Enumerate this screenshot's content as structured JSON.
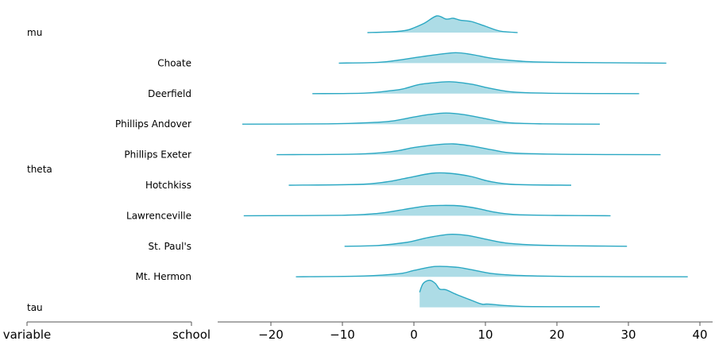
{
  "chart_data": {
    "type": "ridgeplot",
    "xlim": [
      -27,
      41.5
    ],
    "xticks": [
      -20,
      -10,
      0,
      10,
      20,
      30,
      40
    ],
    "xtick_labels": [
      "−20",
      "−10",
      "0",
      "10",
      "20",
      "30",
      "40"
    ],
    "left_axis_labels": [
      "variable",
      "school"
    ],
    "grid": false,
    "color": "#2BA8C3",
    "fill_color": "#ADDCE6",
    "rows": [
      {
        "variable": "mu",
        "school": "",
        "density": [
          [
            -6.5,
            0
          ],
          [
            -3,
            0.005
          ],
          [
            -1,
            0.015
          ],
          [
            0,
            0.03
          ],
          [
            1.5,
            0.06
          ],
          [
            3.2,
            0.105
          ],
          [
            4.5,
            0.085
          ],
          [
            5.5,
            0.09
          ],
          [
            6.5,
            0.078
          ],
          [
            8,
            0.07
          ],
          [
            10,
            0.04
          ],
          [
            12,
            0.01
          ],
          [
            14.5,
            0
          ]
        ]
      },
      {
        "variable": "",
        "school": "Choate",
        "density": [
          [
            -10.5,
            0
          ],
          [
            -5,
            0.005
          ],
          [
            -2,
            0.02
          ],
          [
            1,
            0.04
          ],
          [
            5.5,
            0.065
          ],
          [
            8,
            0.055
          ],
          [
            11,
            0.03
          ],
          [
            15,
            0.012
          ],
          [
            20,
            0.005
          ],
          [
            35.3,
            0
          ]
        ]
      },
      {
        "variable": "",
        "school": "Deerfield",
        "density": [
          [
            -14.2,
            0
          ],
          [
            -7,
            0.003
          ],
          [
            -3,
            0.02
          ],
          [
            -1.5,
            0.03
          ],
          [
            0.5,
            0.055
          ],
          [
            2,
            0.065
          ],
          [
            5,
            0.075
          ],
          [
            8,
            0.06
          ],
          [
            10.5,
            0.035
          ],
          [
            14,
            0.01
          ],
          [
            20,
            0.002
          ],
          [
            31.5,
            0
          ]
        ]
      },
      {
        "variable": "",
        "school": "Phillips Andover",
        "density": [
          [
            -24,
            0
          ],
          [
            -12,
            0.002
          ],
          [
            -6,
            0.01
          ],
          [
            -3,
            0.02
          ],
          [
            0,
            0.045
          ],
          [
            2,
            0.06
          ],
          [
            4.5,
            0.07
          ],
          [
            7,
            0.06
          ],
          [
            10,
            0.035
          ],
          [
            13,
            0.01
          ],
          [
            18,
            0.002
          ],
          [
            26,
            0
          ]
        ]
      },
      {
        "variable": "theta",
        "school": "Phillips Exeter",
        "density": [
          [
            -19.2,
            0
          ],
          [
            -8,
            0.004
          ],
          [
            -3,
            0.02
          ],
          [
            0,
            0.045
          ],
          [
            3,
            0.062
          ],
          [
            5.5,
            0.068
          ],
          [
            8,
            0.055
          ],
          [
            11,
            0.03
          ],
          [
            14,
            0.01
          ],
          [
            22,
            0.002
          ],
          [
            34.5,
            0
          ]
        ]
      },
      {
        "variable": "",
        "school": "Hotchkiss",
        "density": [
          [
            -17.5,
            0
          ],
          [
            -8,
            0.005
          ],
          [
            -4,
            0.02
          ],
          [
            -1,
            0.045
          ],
          [
            2.5,
            0.075
          ],
          [
            5,
            0.075
          ],
          [
            8,
            0.055
          ],
          [
            10.5,
            0.025
          ],
          [
            14,
            0.005
          ],
          [
            22,
            0
          ]
        ]
      },
      {
        "variable": "",
        "school": "Lawrenceville",
        "density": [
          [
            -23.8,
            0
          ],
          [
            -10,
            0.003
          ],
          [
            -5,
            0.015
          ],
          [
            -2,
            0.035
          ],
          [
            1.5,
            0.06
          ],
          [
            4,
            0.065
          ],
          [
            6.5,
            0.062
          ],
          [
            9,
            0.045
          ],
          [
            11,
            0.025
          ],
          [
            14,
            0.008
          ],
          [
            20,
            0.002
          ],
          [
            27.5,
            0
          ]
        ]
      },
      {
        "variable": "",
        "school": "St. Paul's",
        "density": [
          [
            -9.7,
            0
          ],
          [
            -5,
            0.005
          ],
          [
            -1,
            0.025
          ],
          [
            2,
            0.055
          ],
          [
            5,
            0.075
          ],
          [
            7.5,
            0.068
          ],
          [
            10,
            0.045
          ],
          [
            13,
            0.02
          ],
          [
            17,
            0.008
          ],
          [
            22,
            0.003
          ],
          [
            29.8,
            0
          ]
        ]
      },
      {
        "variable": "",
        "school": "Mt. Hermon",
        "density": [
          [
            -16.5,
            0
          ],
          [
            -7,
            0.005
          ],
          [
            -2,
            0.02
          ],
          [
            0,
            0.04
          ],
          [
            3,
            0.065
          ],
          [
            6,
            0.06
          ],
          [
            8,
            0.045
          ],
          [
            11,
            0.02
          ],
          [
            15,
            0.008
          ],
          [
            22,
            0.002
          ],
          [
            38.3,
            0
          ]
        ]
      },
      {
        "variable": "tau",
        "school": "",
        "density": [
          [
            0.8,
            0.095
          ],
          [
            1.3,
            0.15
          ],
          [
            2.2,
            0.17
          ],
          [
            3,
            0.15
          ],
          [
            3.6,
            0.115
          ],
          [
            4.5,
            0.11
          ],
          [
            6,
            0.08
          ],
          [
            8,
            0.045
          ],
          [
            9.5,
            0.02
          ],
          [
            10.5,
            0.02
          ],
          [
            15,
            0.006
          ],
          [
            26,
            0.004
          ]
        ],
        "bounded_left": true
      }
    ]
  }
}
